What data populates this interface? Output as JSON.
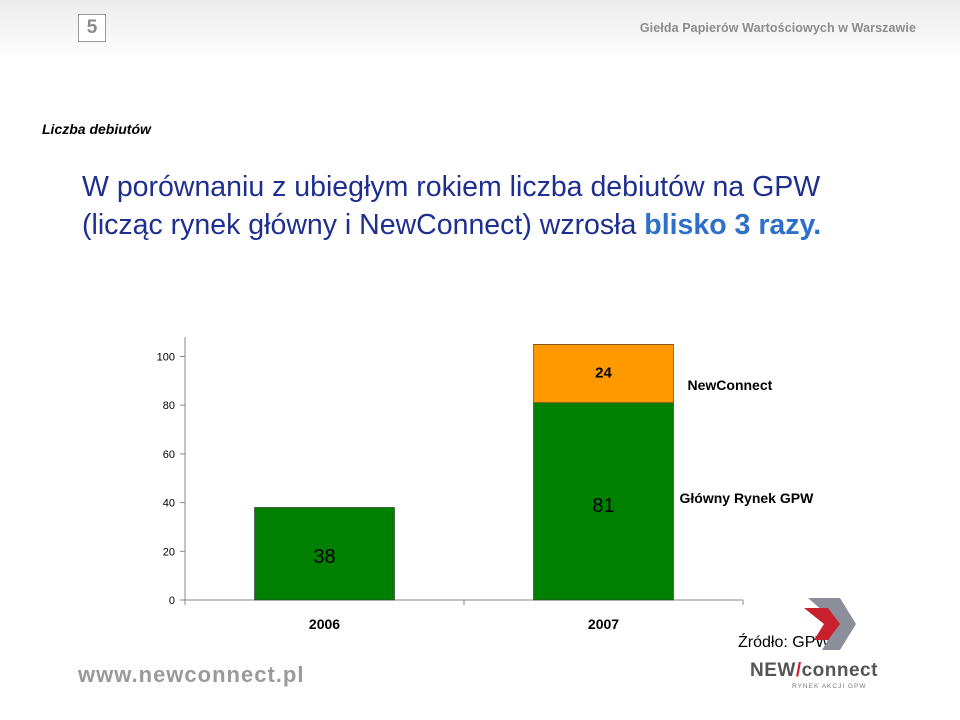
{
  "header": {
    "slide_number": "5",
    "organization": "Giełda Papierów Wartościowych w Warszawie"
  },
  "section_label": "Liczba debiutów",
  "headline": {
    "text": "W porównaniu z ubiegłym rokiem liczba debiutów na GPW (licząc rynek główny i NewConnect) wzrosła",
    "highlight": "blisko 3 razy."
  },
  "chart_data": {
    "type": "bar",
    "stacked": true,
    "categories": [
      "2006",
      "2007"
    ],
    "series": [
      {
        "name": "Główny Rynek GPW",
        "values": [
          38,
          81
        ],
        "color": "#008000"
      },
      {
        "name": "NewConnect",
        "values": [
          0,
          24
        ],
        "color": "#ff9900"
      }
    ],
    "ylim": [
      0,
      100
    ],
    "yticks": [
      0,
      20,
      40,
      60,
      80,
      100
    ],
    "data_labels": {
      "Główny Rynek GPW": [
        "38",
        "81"
      ],
      "NewConnect": [
        "",
        "24"
      ]
    },
    "legend_placement": "right, labels beside series",
    "grid": false
  },
  "source_note": "Źródło: GPW",
  "footer": {
    "url": "www.newconnect.pl",
    "logo_text_left": "NEW",
    "logo_text_slash": "/",
    "logo_text_right": "connect",
    "logo_subtext": "RYNEK AKCJI GPW"
  }
}
